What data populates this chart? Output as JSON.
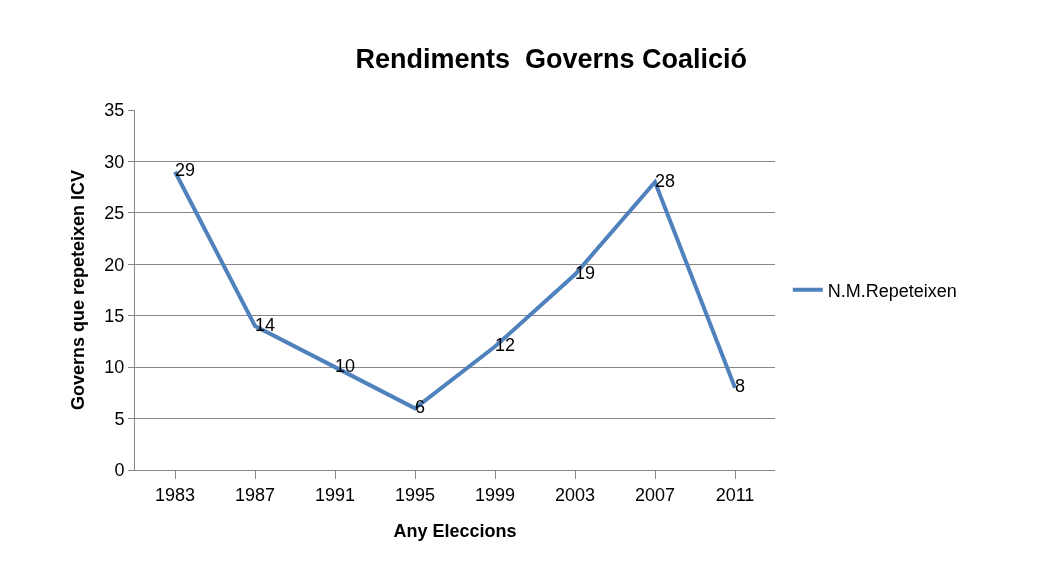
{
  "chart_data": {
    "type": "line",
    "title": "Rendiments  Governs Coalició",
    "xlabel": "Any Eleccions",
    "ylabel": "Governs que repeteixen ICV",
    "categories": [
      "1983",
      "1987",
      "1991",
      "1995",
      "1999",
      "2003",
      "2007",
      "2011"
    ],
    "series": [
      {
        "name": "N.M.Repeteixen",
        "color": "#4f81bd",
        "values": [
          29,
          14,
          10,
          6,
          12,
          19,
          28,
          8
        ]
      }
    ],
    "ylim": [
      0,
      35
    ],
    "yticks": [
      0,
      5,
      10,
      15,
      20,
      25,
      30,
      35
    ],
    "grid": "y",
    "legend": "right",
    "data_labels": true,
    "marker": "none",
    "line_style": "solid"
  }
}
